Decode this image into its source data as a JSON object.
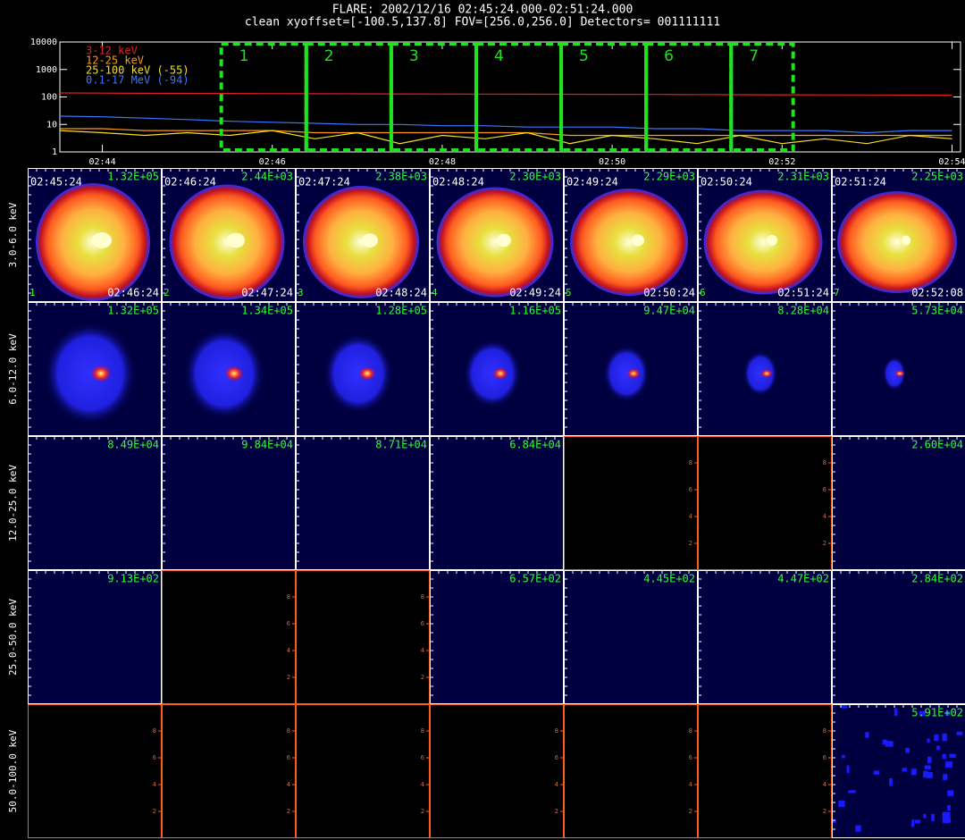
{
  "header": {
    "title": "FLARE: 2002/12/16 02:45:24.000-02:51:24.000",
    "subtitle": "clean    xyoffset=[-100.5,137.8]    FOV=[256.0,256.0]    Detectors= 001111111"
  },
  "chart_data": {
    "type": "line",
    "log_y": true,
    "x": [
      43.5,
      44,
      44.5,
      45,
      45.5,
      46,
      46.5,
      47,
      47.5,
      48,
      48.5,
      49,
      49.5,
      50,
      50.5,
      51,
      51.5,
      52,
      52.5,
      53,
      53.5,
      54
    ],
    "xlim": [
      43.5,
      54.1
    ],
    "xticks": [
      {
        "value": 44,
        "label": "02:44"
      },
      {
        "value": 46,
        "label": "02:46"
      },
      {
        "value": 48,
        "label": "02:48"
      },
      {
        "value": 50,
        "label": "02:50"
      },
      {
        "value": 52,
        "label": "02:52"
      },
      {
        "value": 54,
        "label": "02:54"
      }
    ],
    "ylim": [
      1,
      10000
    ],
    "yticks": [
      1,
      10,
      100,
      1000,
      10000
    ],
    "series": [
      {
        "name": "3-12 keV",
        "color": "#e02020",
        "values": [
          140,
          138,
          136,
          135,
          134,
          132,
          131,
          130,
          129,
          128,
          127,
          126,
          125,
          124,
          123,
          122,
          121,
          120,
          119,
          118,
          117,
          116
        ]
      },
      {
        "name": "12-25 keV",
        "color": "#ff9a1a",
        "values": [
          7,
          7,
          6,
          6,
          6,
          6,
          5,
          5,
          5,
          5,
          5,
          5,
          4,
          4,
          4,
          4,
          4,
          4,
          4,
          4,
          4,
          4
        ]
      },
      {
        "name": "25-100 keV (-55)",
        "color": "#f4e020",
        "values": [
          6,
          5,
          4,
          5,
          4,
          6,
          3,
          5,
          2,
          4,
          3,
          5,
          2,
          4,
          3,
          2,
          4,
          2,
          3,
          2,
          4,
          3
        ]
      },
      {
        "name": "0.1-17 MeV (-94)",
        "color": "#3a78ff",
        "values": [
          20,
          19,
          17,
          15,
          13,
          12,
          11,
          10,
          10,
          9,
          9,
          8,
          8,
          8,
          7,
          7,
          6,
          6,
          6,
          5,
          6,
          6
        ]
      }
    ],
    "intervals": {
      "color": "#22e022",
      "labels": [
        "1",
        "2",
        "3",
        "4",
        "5",
        "6",
        "7"
      ],
      "starts": [
        45.4,
        46.4,
        47.4,
        48.4,
        49.4,
        50.4,
        51.4
      ],
      "ends": [
        46.4,
        47.4,
        48.4,
        49.4,
        50.4,
        51.4,
        52.13
      ]
    }
  },
  "image_grid": {
    "empty_axis_ticks": [
      2,
      4,
      6,
      8
    ],
    "start_times": [
      "02:45:24",
      "02:46:24",
      "02:47:24",
      "02:48:24",
      "02:49:24",
      "02:50:24",
      "02:51:24"
    ],
    "end_times": [
      "02:46:24",
      "02:47:24",
      "02:48:24",
      "02:49:24",
      "02:50:24",
      "02:51:24",
      "02:52:08"
    ],
    "indices": [
      "1",
      "2",
      "3",
      "4",
      "5",
      "6",
      "7"
    ],
    "rows": [
      {
        "label": "3.0-6.0 keV",
        "peaks": [
          "1.32E+05",
          "2.44E+03",
          "2.38E+03",
          "2.30E+03",
          "2.29E+03",
          "2.31E+03",
          "2.25E+03"
        ]
      },
      {
        "label": "6.0-12.0 keV",
        "peaks": [
          "1.32E+05",
          "1.34E+05",
          "1.28E+05",
          "1.16E+05",
          "9.47E+04",
          "8.28E+04",
          "5.73E+04"
        ]
      },
      {
        "label": "12.0-25.0 keV",
        "peaks": [
          "8.49E+04",
          "9.84E+04",
          "8.71E+04",
          "6.84E+04",
          null,
          null,
          "2.60E+04"
        ]
      },
      {
        "label": "25.0-50.0 keV",
        "peaks": [
          "9.13E+02",
          null,
          null,
          "6.57E+02",
          "4.45E+02",
          "4.47E+02",
          "2.84E+02"
        ]
      },
      {
        "label": "50.0-100.0 keV",
        "peaks": [
          null,
          null,
          null,
          null,
          null,
          null,
          "5.91E+02"
        ]
      }
    ]
  }
}
